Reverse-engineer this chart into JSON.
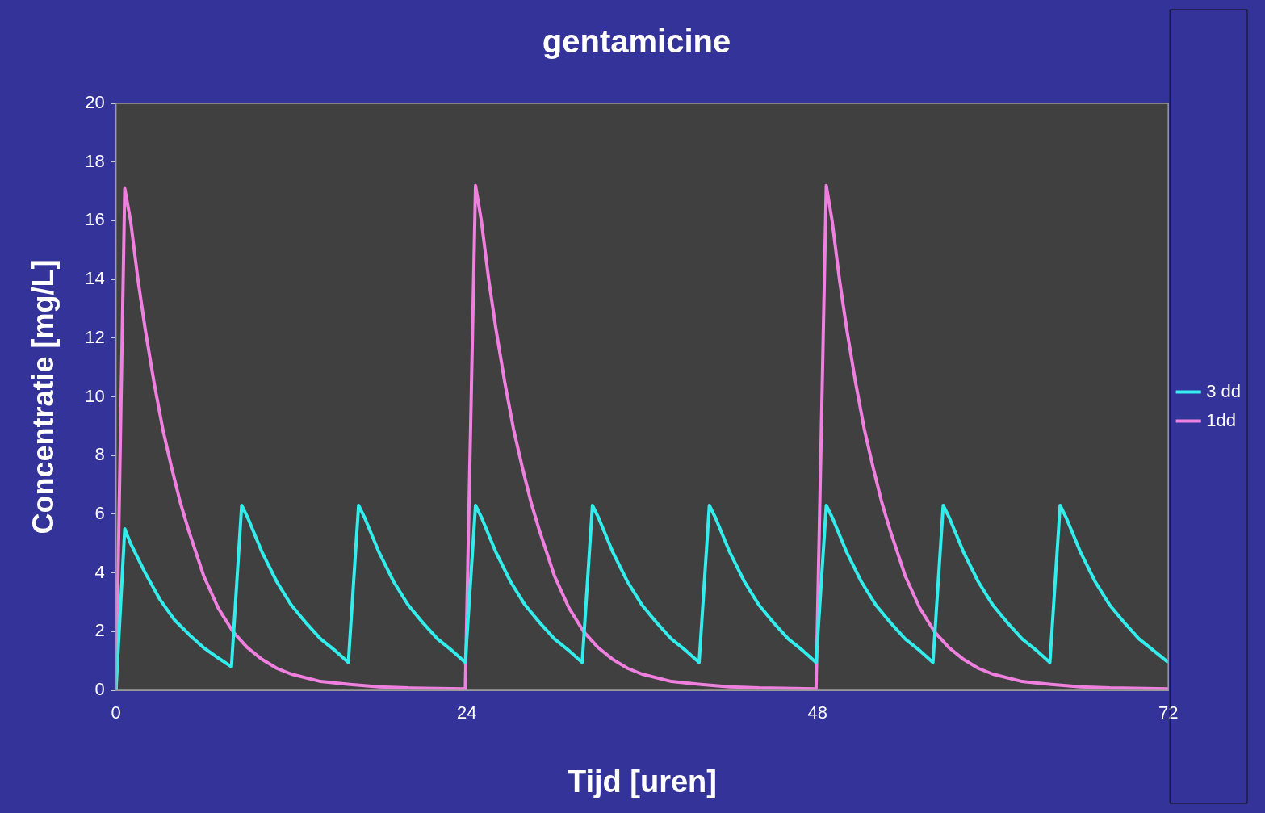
{
  "chart_data": {
    "type": "line",
    "title": "gentamicine",
    "xlabel": "Tijd [uren]",
    "ylabel": "Concentratie [mg/L]",
    "xlim": [
      0,
      72
    ],
    "xticks": [
      0,
      24,
      48,
      72
    ],
    "ylim": [
      0,
      20
    ],
    "yticks": [
      0,
      2,
      4,
      6,
      8,
      10,
      12,
      14,
      16,
      18,
      20
    ],
    "grid": false,
    "legend": "right",
    "marker": "none",
    "line_style": "solid",
    "series": [
      {
        "name": "3 dd",
        "color": "#33ecec",
        "x": [
          0,
          0.6,
          1,
          2,
          3,
          4,
          5,
          6,
          7,
          7.9,
          8.6,
          9,
          10,
          11,
          12,
          13,
          14,
          15,
          15.9,
          16.6,
          17,
          18,
          19,
          20,
          21,
          22,
          23,
          23.9,
          24.6,
          25,
          26,
          27,
          28,
          29,
          30,
          31,
          31.9,
          32.6,
          33,
          34,
          35,
          36,
          37,
          38,
          39,
          39.9,
          40.6,
          41,
          42,
          43,
          44,
          45,
          46,
          47,
          47.9,
          48.6,
          49,
          50,
          51,
          52,
          53,
          54,
          55,
          55.9,
          56.6,
          57,
          58,
          59,
          60,
          61,
          62,
          63,
          63.9,
          64.6,
          65,
          66,
          67,
          68,
          69,
          70,
          71,
          72
        ],
        "values": [
          0,
          5.5,
          5.0,
          4.0,
          3.1,
          2.4,
          1.9,
          1.45,
          1.1,
          0.8,
          6.3,
          5.9,
          4.7,
          3.7,
          2.9,
          2.3,
          1.75,
          1.35,
          0.95,
          6.3,
          5.9,
          4.7,
          3.7,
          2.9,
          2.3,
          1.75,
          1.35,
          0.95,
          6.3,
          5.9,
          4.7,
          3.7,
          2.9,
          2.3,
          1.75,
          1.35,
          0.95,
          6.3,
          5.9,
          4.7,
          3.7,
          2.9,
          2.3,
          1.75,
          1.35,
          0.95,
          6.3,
          5.9,
          4.7,
          3.7,
          2.9,
          2.3,
          1.75,
          1.35,
          0.95,
          6.3,
          5.9,
          4.7,
          3.7,
          2.9,
          2.3,
          1.75,
          1.35,
          0.95,
          6.3,
          5.9,
          4.7,
          3.7,
          2.9,
          2.3,
          1.75,
          1.35,
          0.95,
          6.3,
          5.9,
          4.7,
          3.7,
          2.9,
          2.3,
          1.75,
          1.35,
          0.95
        ]
      },
      {
        "name": "1dd",
        "color": "#f080e0",
        "x": [
          0,
          0.6,
          1,
          1.5,
          2,
          2.6,
          3.2,
          3.8,
          4.4,
          5,
          6,
          7,
          8,
          9,
          10,
          11,
          12,
          14,
          16,
          18,
          20,
          23.9,
          24.6,
          25,
          25.5,
          26,
          26.6,
          27.2,
          27.8,
          28.4,
          29,
          30,
          31,
          32,
          33,
          34,
          35,
          36,
          38,
          40,
          42,
          44,
          47.9,
          48.6,
          49,
          49.5,
          50,
          50.6,
          51.2,
          51.8,
          52.4,
          53,
          54,
          55,
          56,
          57,
          58,
          59,
          60,
          62,
          64,
          66,
          68,
          72
        ],
        "values": [
          0,
          17.1,
          16,
          14,
          12.3,
          10.5,
          8.9,
          7.6,
          6.4,
          5.4,
          3.9,
          2.8,
          2,
          1.45,
          1.05,
          0.75,
          0.55,
          0.3,
          0.2,
          0.12,
          0.08,
          0.05,
          17.2,
          16,
          14,
          12.3,
          10.5,
          8.9,
          7.6,
          6.4,
          5.4,
          3.9,
          2.8,
          2,
          1.45,
          1.05,
          0.75,
          0.55,
          0.3,
          0.2,
          0.12,
          0.08,
          0.05,
          17.2,
          16,
          14,
          12.3,
          10.5,
          8.9,
          7.6,
          6.4,
          5.4,
          3.9,
          2.8,
          2,
          1.45,
          1.05,
          0.75,
          0.55,
          0.3,
          0.2,
          0.12,
          0.08,
          0.05
        ]
      }
    ]
  }
}
